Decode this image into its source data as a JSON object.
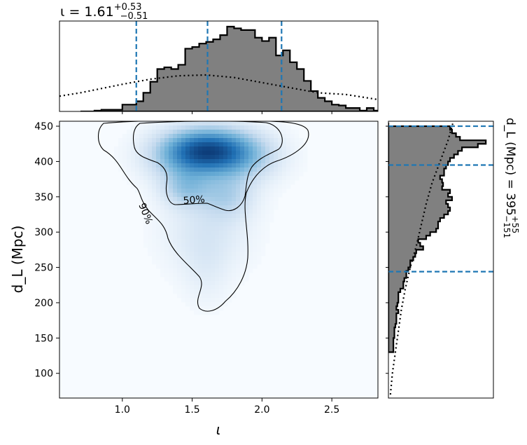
{
  "chart_data": [
    {
      "panel": "top-marginal",
      "type": "histogram",
      "title_main": "ι = 1.61",
      "title_sup": "+0.53",
      "title_sub": "−0.51",
      "x_range": [
        0.55,
        2.83
      ],
      "quantile_lines": [
        1.1,
        1.61,
        2.14
      ],
      "hist_bin_width": 0.05,
      "hist_bins_start": 0.7,
      "hist_heights": [
        0,
        0,
        0.01,
        0.02,
        0.02,
        0.02,
        0.08,
        0.08,
        0.12,
        0.22,
        0.35,
        0.5,
        0.52,
        0.5,
        0.55,
        0.74,
        0.76,
        0.8,
        0.82,
        0.85,
        0.9,
        1.0,
        0.98,
        0.96,
        0.96,
        0.87,
        0.83,
        0.87,
        0.66,
        0.72,
        0.58,
        0.5,
        0.36,
        0.24,
        0.16,
        0.12,
        0.08,
        0.07,
        0.04,
        0.04,
        0.01,
        0.04,
        0.01,
        0.01,
        0
      ],
      "prior_curve": [
        [
          0.55,
          0.18
        ],
        [
          0.7,
          0.22
        ],
        [
          0.85,
          0.27
        ],
        [
          1.0,
          0.32
        ],
        [
          1.2,
          0.38
        ],
        [
          1.4,
          0.42
        ],
        [
          1.6,
          0.43
        ],
        [
          1.8,
          0.4
        ],
        [
          2.0,
          0.34
        ],
        [
          2.2,
          0.28
        ],
        [
          2.4,
          0.22
        ],
        [
          2.6,
          0.2
        ],
        [
          2.83,
          0.14
        ]
      ]
    },
    {
      "panel": "joint",
      "type": "heatmap",
      "xlabel": "ι",
      "ylabel": "d_L (Mpc)",
      "x_range": [
        0.55,
        2.83
      ],
      "y_range": [
        65,
        457
      ],
      "x_ticks": [
        "1.0",
        "1.5",
        "2.0",
        "2.5"
      ],
      "x_tick_values": [
        1.0,
        1.5,
        2.0,
        2.5
      ],
      "y_ticks": [
        "100",
        "150",
        "200",
        "250",
        "300",
        "350",
        "400",
        "450"
      ],
      "y_tick_values": [
        100,
        150,
        200,
        250,
        300,
        350,
        400,
        450
      ],
      "contour_labels": [
        "50%",
        "90%"
      ],
      "colormap": "Blues",
      "density_blobs": [
        {
          "x": 1.62,
          "y": 418,
          "sx": 0.22,
          "sy": 22,
          "w": 1.0
        },
        {
          "x": 1.45,
          "y": 405,
          "sx": 0.2,
          "sy": 25,
          "w": 0.55
        },
        {
          "x": 1.85,
          "y": 405,
          "sx": 0.2,
          "sy": 25,
          "w": 0.5
        },
        {
          "x": 1.45,
          "y": 360,
          "sx": 0.12,
          "sy": 18,
          "w": 0.45
        },
        {
          "x": 1.75,
          "y": 350,
          "sx": 0.14,
          "sy": 22,
          "w": 0.4
        },
        {
          "x": 1.6,
          "y": 300,
          "sx": 0.22,
          "sy": 40,
          "w": 0.25
        },
        {
          "x": 1.6,
          "y": 240,
          "sx": 0.12,
          "sy": 35,
          "w": 0.12
        }
      ]
    },
    {
      "panel": "right-marginal",
      "type": "histogram",
      "title_main": "d_L (Mpc) = 395",
      "title_sup": "+55",
      "title_sub": "−151",
      "y_range": [
        65,
        457
      ],
      "quantile_lines": [
        450,
        395,
        244
      ],
      "hist_bin_width": 5,
      "hist_bins_start": 130,
      "hist_heights": [
        0.05,
        0.05,
        0.05,
        0.05,
        0.06,
        0.06,
        0.06,
        0.07,
        0.08,
        0.08,
        0.08,
        0.1,
        0.08,
        0.09,
        0.1,
        0.1,
        0.1,
        0.12,
        0.15,
        0.15,
        0.16,
        0.18,
        0.18,
        0.2,
        0.22,
        0.22,
        0.25,
        0.27,
        0.28,
        0.35,
        0.32,
        0.3,
        0.38,
        0.42,
        0.48,
        0.5,
        0.5,
        0.52,
        0.56,
        0.6,
        0.62,
        0.6,
        0.58,
        0.64,
        0.6,
        0.62,
        0.54,
        0.55,
        0.54,
        0.52,
        0.56,
        0.56,
        0.58,
        0.6,
        0.62,
        0.66,
        0.7,
        0.74,
        0.9,
        0.98,
        0.72,
        0.68,
        0.64,
        0.62,
        0
      ],
      "prior_curve": [
        [
          70,
          0.02
        ],
        [
          100,
          0.04
        ],
        [
          130,
          0.07
        ],
        [
          160,
          0.1
        ],
        [
          190,
          0.13
        ],
        [
          220,
          0.17
        ],
        [
          250,
          0.22
        ],
        [
          280,
          0.28
        ],
        [
          310,
          0.33
        ],
        [
          340,
          0.38
        ],
        [
          370,
          0.44
        ],
        [
          400,
          0.52
        ],
        [
          430,
          0.6
        ],
        [
          455,
          0.65
        ]
      ]
    }
  ]
}
